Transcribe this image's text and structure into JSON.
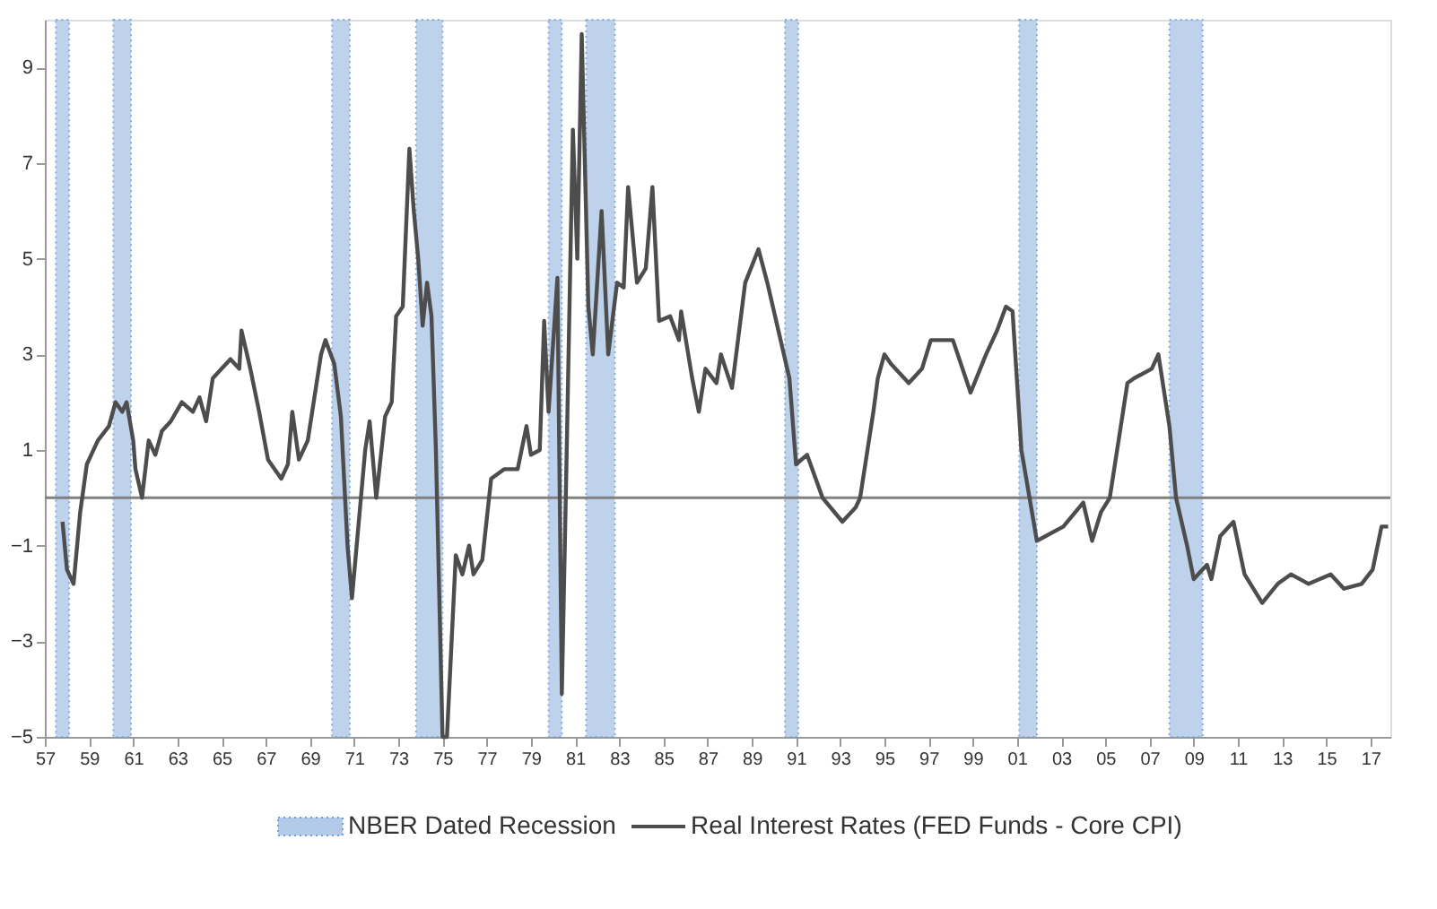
{
  "chart_data": {
    "type": "line",
    "x": [
      1957.8,
      1958.0,
      1958.3,
      1958.6,
      1958.9,
      1959.4,
      1959.9,
      1960.2,
      1960.5,
      1960.7,
      1961.0,
      1961.1,
      1961.4,
      1961.7,
      1962.0,
      1962.3,
      1962.7,
      1963.2,
      1963.7,
      1964.0,
      1964.3,
      1964.6,
      1965.0,
      1965.4,
      1965.8,
      1965.9,
      1966.3,
      1966.7,
      1967.1,
      1967.7,
      1968.0,
      1968.2,
      1968.5,
      1968.9,
      1969.5,
      1969.7,
      1970.1,
      1970.4,
      1970.7,
      1970.9,
      1971.5,
      1971.7,
      1972.0,
      1972.4,
      1972.7,
      1972.9,
      1973.2,
      1973.5,
      1973.7,
      1973.9,
      1974.1,
      1974.3,
      1974.5,
      1974.7,
      1975.0,
      1975.2,
      1975.6,
      1975.9,
      1976.2,
      1976.4,
      1976.8,
      1977.2,
      1977.8,
      1978.4,
      1978.8,
      1979.0,
      1979.4,
      1979.6,
      1979.8,
      1980.2,
      1980.4,
      1980.6,
      1980.9,
      1981.1,
      1981.3,
      1981.6,
      1981.8,
      1982.2,
      1982.5,
      1982.9,
      1983.2,
      1983.4,
      1983.8,
      1984.2,
      1984.5,
      1984.8,
      1985.3,
      1985.7,
      1985.8,
      1986.3,
      1986.6,
      1986.9,
      1987.4,
      1987.6,
      1988.1,
      1988.7,
      1989.3,
      1989.7,
      1990.3,
      1990.7,
      1991.0,
      1991.5,
      1992.2,
      1993.1,
      1993.7,
      1993.9,
      1994.5,
      1994.7,
      1995.0,
      1995.3,
      1996.1,
      1996.7,
      1997.1,
      1998.1,
      1998.9,
      1999.6,
      2000.1,
      2000.5,
      2000.8,
      2001.2,
      2001.9,
      2002.3,
      2003.1,
      2004.0,
      2004.4,
      2004.8,
      2005.2,
      2006.0,
      2006.3,
      2007.1,
      2007.4,
      2007.9,
      2008.2,
      2008.7,
      2009.0,
      2009.6,
      2009.8,
      2010.2,
      2010.8,
      2011.3,
      2012.1,
      2012.8,
      2013.4,
      2014.2,
      2015.2,
      2015.8,
      2016.6,
      2017.1,
      2017.5,
      2017.8
    ],
    "series": [
      {
        "name": "Real Interest Rates (FED Funds - Core CPI)",
        "color": "#4d4d4d",
        "values": [
          -0.5,
          -1.5,
          -1.8,
          -0.3,
          0.7,
          1.2,
          1.5,
          2.0,
          1.8,
          2.0,
          1.2,
          0.6,
          0.0,
          1.2,
          0.9,
          1.4,
          1.6,
          2.0,
          1.8,
          2.1,
          1.6,
          2.5,
          2.7,
          2.9,
          2.7,
          3.5,
          2.7,
          1.8,
          0.8,
          0.4,
          0.7,
          1.8,
          0.8,
          1.2,
          3.0,
          3.3,
          2.8,
          1.7,
          -1.0,
          -2.1,
          1.0,
          1.6,
          0.0,
          1.7,
          2.0,
          3.8,
          4.0,
          7.3,
          6.0,
          5.0,
          3.6,
          4.5,
          3.8,
          1.0,
          -5.0,
          -5.0,
          -1.2,
          -1.6,
          -1.0,
          -1.6,
          -1.3,
          0.4,
          0.6,
          0.6,
          1.5,
          0.9,
          1.0,
          3.7,
          1.8,
          4.6,
          -4.1,
          0.5,
          7.7,
          5.0,
          9.7,
          4.0,
          3.0,
          6.0,
          3.0,
          4.5,
          4.4,
          6.5,
          4.5,
          4.8,
          6.5,
          3.7,
          3.8,
          3.3,
          3.9,
          2.5,
          1.8,
          2.7,
          2.4,
          3.0,
          2.3,
          4.5,
          5.2,
          4.5,
          3.3,
          2.5,
          0.7,
          0.9,
          0.0,
          -0.5,
          -0.2,
          0.0,
          1.8,
          2.5,
          3.0,
          2.8,
          2.4,
          2.7,
          3.3,
          3.3,
          2.2,
          3.0,
          3.5,
          4.0,
          3.9,
          1.0,
          -0.9,
          -0.8,
          -0.6,
          -0.1,
          -0.9,
          -0.3,
          0.0,
          2.4,
          2.5,
          2.7,
          3.0,
          1.5,
          0.0,
          -1.0,
          -1.7,
          -1.4,
          -1.7,
          -0.8,
          -0.5,
          -1.6,
          -2.2,
          -1.8,
          -1.6,
          -1.8,
          -1.6,
          -1.9,
          -1.8,
          -1.5,
          -0.6,
          -0.6
        ]
      }
    ],
    "xlim": [
      1957,
      2017.9
    ],
    "xticks": [
      {
        "value": 1957,
        "label": "57"
      },
      {
        "value": 1959,
        "label": "59"
      },
      {
        "value": 1961,
        "label": "61"
      },
      {
        "value": 1963,
        "label": "63"
      },
      {
        "value": 1965,
        "label": "65"
      },
      {
        "value": 1967,
        "label": "67"
      },
      {
        "value": 1969,
        "label": "69"
      },
      {
        "value": 1971,
        "label": "71"
      },
      {
        "value": 1973,
        "label": "73"
      },
      {
        "value": 1975,
        "label": "75"
      },
      {
        "value": 1977,
        "label": "77"
      },
      {
        "value": 1979,
        "label": "79"
      },
      {
        "value": 1981,
        "label": "81"
      },
      {
        "value": 1983,
        "label": "83"
      },
      {
        "value": 1985,
        "label": "85"
      },
      {
        "value": 1987,
        "label": "87"
      },
      {
        "value": 1989,
        "label": "89"
      },
      {
        "value": 1991,
        "label": "91"
      },
      {
        "value": 1993,
        "label": "93"
      },
      {
        "value": 1995,
        "label": "95"
      },
      {
        "value": 1997,
        "label": "97"
      },
      {
        "value": 1999,
        "label": "99"
      },
      {
        "value": 2001,
        "label": "01"
      },
      {
        "value": 2003,
        "label": "03"
      },
      {
        "value": 2005,
        "label": "05"
      },
      {
        "value": 2007,
        "label": "07"
      },
      {
        "value": 2009,
        "label": "09"
      },
      {
        "value": 2011,
        "label": "11"
      },
      {
        "value": 2013,
        "label": "13"
      },
      {
        "value": 2015,
        "label": "15"
      },
      {
        "value": 2017,
        "label": "17"
      }
    ],
    "ylim": [
      -5,
      10
    ],
    "yticks": [
      -5,
      -3,
      -1,
      1,
      3,
      5,
      7,
      9
    ],
    "ref_lines": [
      {
        "axis": "y",
        "value": 0,
        "color": "#808080"
      }
    ],
    "bands": [
      {
        "axis": "x",
        "from": 1957.5,
        "to": 1958.1,
        "label": "NBER Dated Recession",
        "color": "#b3cbe8"
      },
      {
        "axis": "x",
        "from": 1960.1,
        "to": 1960.9,
        "color": "#b3cbe8"
      },
      {
        "axis": "x",
        "from": 1970.0,
        "to": 1970.8,
        "color": "#b3cbe8"
      },
      {
        "axis": "x",
        "from": 1973.8,
        "to": 1975.0,
        "color": "#b3cbe8"
      },
      {
        "axis": "x",
        "from": 1979.8,
        "to": 1980.4,
        "color": "#b3cbe8"
      },
      {
        "axis": "x",
        "from": 1981.5,
        "to": 1982.8,
        "color": "#b3cbe8"
      },
      {
        "axis": "x",
        "from": 1990.5,
        "to": 1991.1,
        "color": "#b3cbe8"
      },
      {
        "axis": "x",
        "from": 2001.1,
        "to": 2001.9,
        "color": "#b3cbe8"
      },
      {
        "axis": "x",
        "from": 2007.9,
        "to": 2009.4,
        "color": "#b3cbe8"
      }
    ],
    "grid": false,
    "legend": "bottom",
    "line_style": "solid",
    "marker": "none"
  }
}
